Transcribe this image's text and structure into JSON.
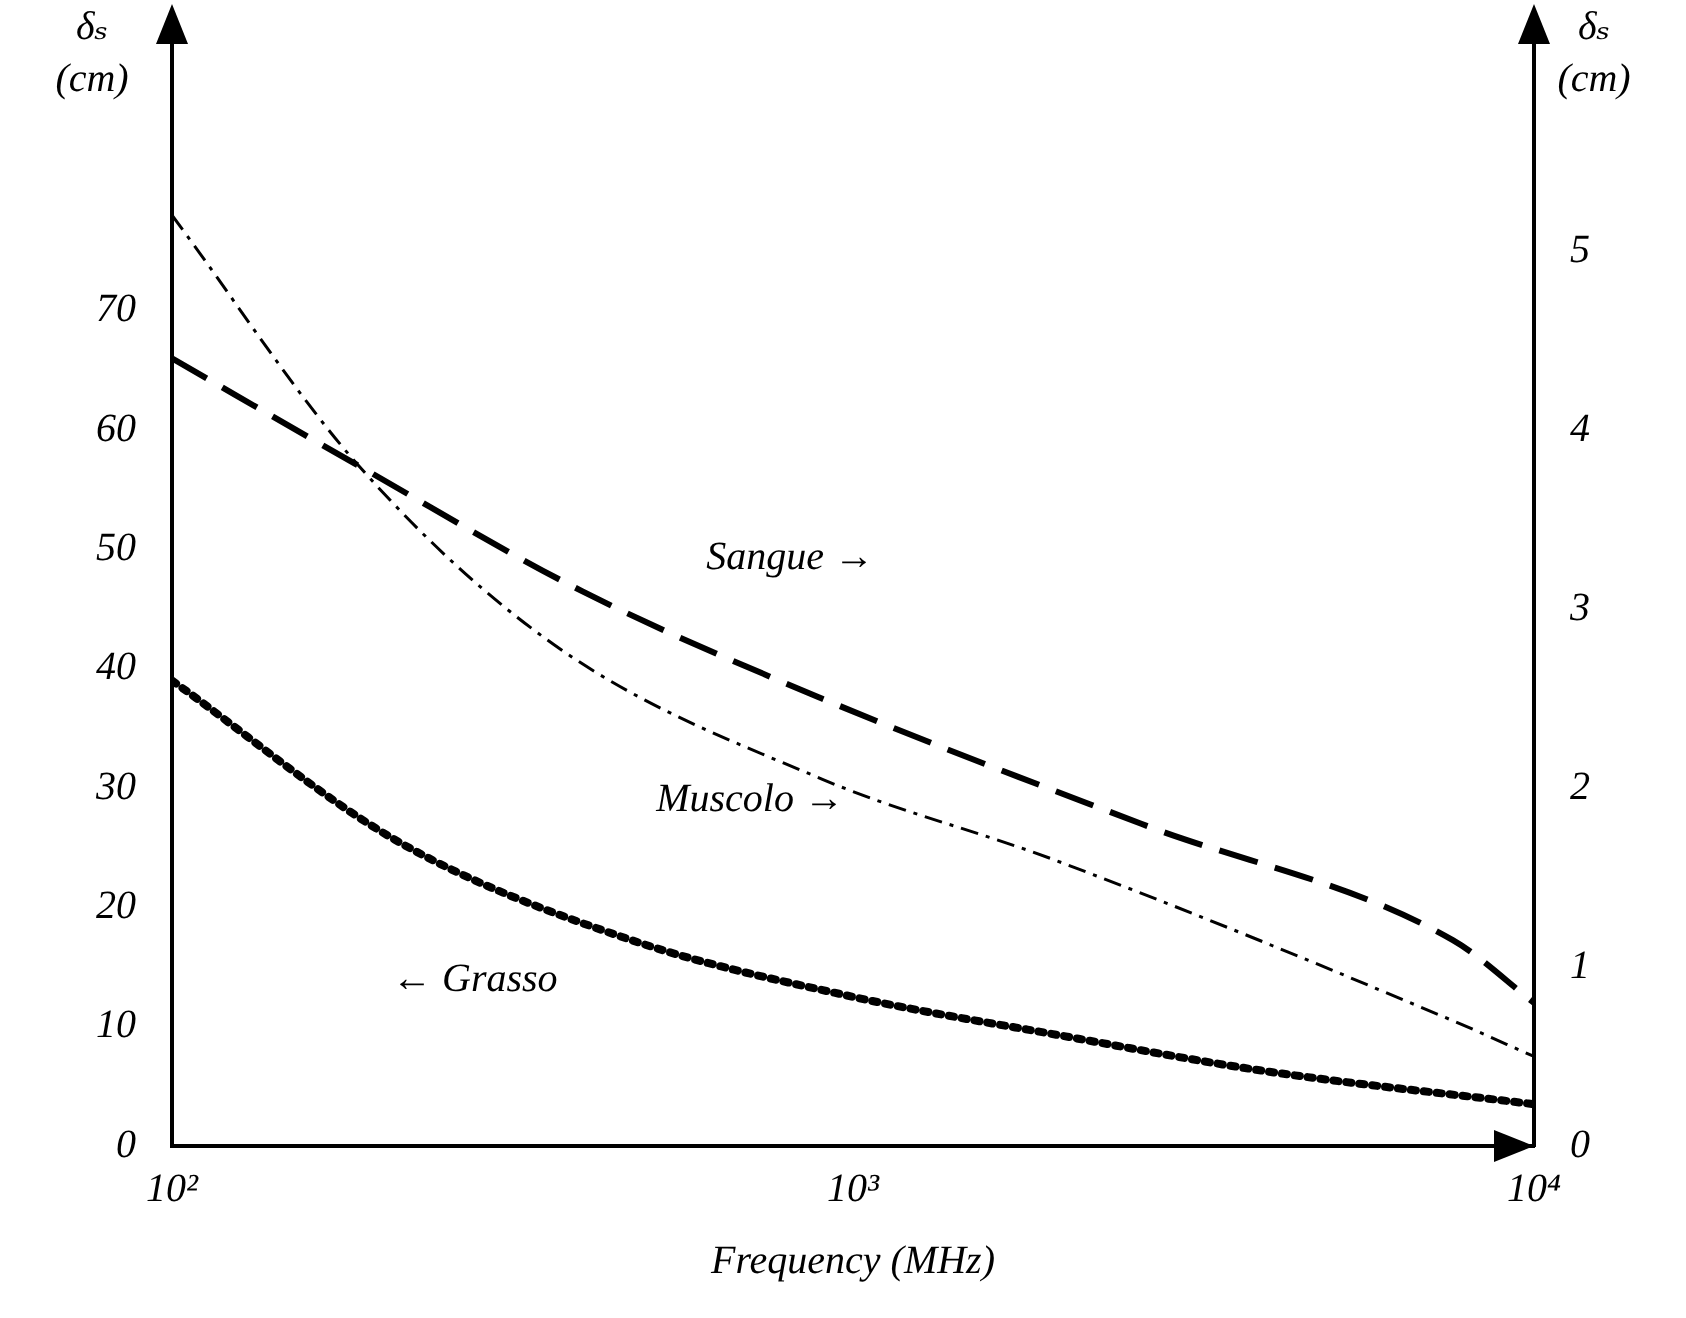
{
  "chart_data": {
    "type": "line",
    "xlabel": "Frequency (MHz)",
    "ylabel": "δₛ (cm)",
    "y2label": "δₛ (cm)",
    "log": "x",
    "xlim": [
      100,
      10000
    ],
    "xticks": [
      {
        "value": 100,
        "label": "10²"
      },
      {
        "value": 1000,
        "label": "10³"
      },
      {
        "value": 10000,
        "label": "10⁴"
      }
    ],
    "ylim": [
      0,
      90
    ],
    "yticks": [
      0,
      10,
      20,
      30,
      40,
      50,
      60,
      70
    ],
    "y2lim": [
      0,
      6
    ],
    "y2ticks": [
      0,
      1,
      2,
      3,
      4,
      5
    ],
    "marker": "none",
    "series": [
      {
        "name": "Sangue →",
        "color": "#000000",
        "axis": "y2",
        "line_style": "dashed",
        "x": [
          100,
          188,
          400,
          900,
          2650,
          7600,
          10000
        ],
        "values": [
          4.4,
          3.8,
          3.1,
          2.5,
          1.8,
          1.15,
          0.8
        ]
      },
      {
        "name": "Muscolo →",
        "color": "#000000",
        "axis": "y2",
        "line_style": "dashdot",
        "x": [
          100,
          188,
          364,
          900,
          1970,
          7600,
          10000
        ],
        "values": [
          5.2,
          3.8,
          2.8,
          2.05,
          1.6,
          0.7,
          0.5
        ]
      },
      {
        "name": "← Grasso",
        "color": "#000000",
        "axis": "y",
        "line_style": "dotted",
        "x": [
          100,
          215,
          470,
          1000,
          2000,
          4000,
          10000
        ],
        "values": [
          39,
          25.5,
          17.3,
          12.5,
          9.3,
          6.3,
          3.5
        ]
      }
    ]
  }
}
